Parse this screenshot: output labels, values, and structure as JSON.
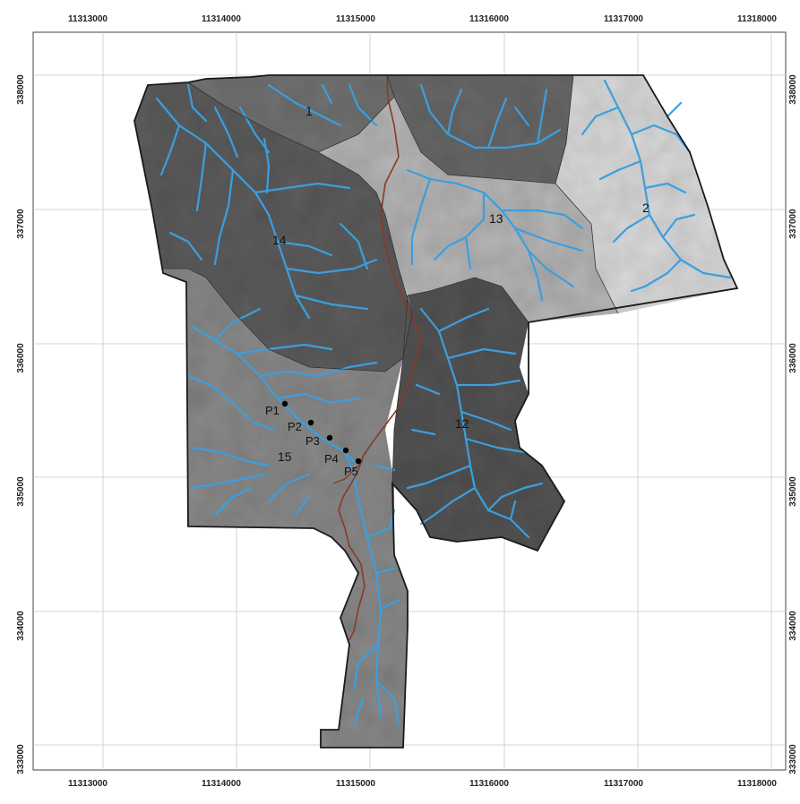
{
  "map": {
    "x_ticks": [
      "11313000",
      "11314000",
      "11315000",
      "11316000",
      "11317000",
      "11318000"
    ],
    "y_ticks": [
      "338000",
      "337000",
      "336000",
      "335000",
      "334000",
      "333000"
    ],
    "subbasins": [
      {
        "id": "1",
        "label": "1"
      },
      {
        "id": "2",
        "label": "2"
      },
      {
        "id": "12",
        "label": "12"
      },
      {
        "id": "13",
        "label": "13"
      },
      {
        "id": "14",
        "label": "14"
      },
      {
        "id": "15",
        "label": "15"
      }
    ],
    "points": [
      "P1",
      "P2",
      "P3",
      "P4",
      "P5"
    ],
    "colors": {
      "boundary": "#1a1a1a",
      "stream": "#3a9fe0",
      "main_channel": "#8a3a22",
      "grid": "#c8c8c8",
      "basin_dark": "#5b5b5b",
      "basin_mid": "#8c8c8c",
      "basin_light": "#b9b9b9",
      "basin_lightest": "#dcdcdc"
    }
  }
}
